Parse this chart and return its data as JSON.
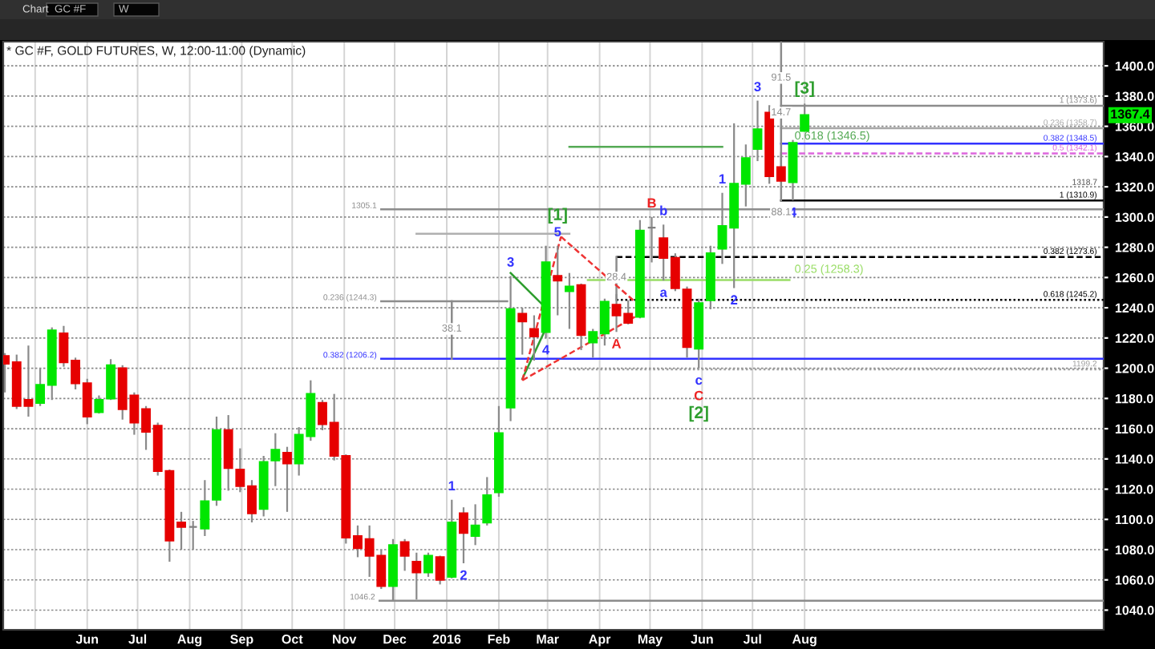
{
  "chart_data": {
    "type": "candlestick",
    "title": "* GC #F, GOLD FUTURES, W, 12:00-11:00 (Dynamic)",
    "x": [
      "2015-04-13",
      "2015-04-20",
      "2015-04-27",
      "2015-05-04",
      "2015-05-11",
      "2015-05-18",
      "2015-05-25",
      "2015-06-01",
      "2015-06-08",
      "2015-06-15",
      "2015-06-22",
      "2015-06-29",
      "2015-07-06",
      "2015-07-13",
      "2015-07-20",
      "2015-07-27",
      "2015-08-03",
      "2015-08-10",
      "2015-08-17",
      "2015-08-24",
      "2015-08-31",
      "2015-09-07",
      "2015-09-14",
      "2015-09-21",
      "2015-09-28",
      "2015-10-05",
      "2015-10-12",
      "2015-10-19",
      "2015-10-26",
      "2015-11-02",
      "2015-11-09",
      "2015-11-16",
      "2015-11-23",
      "2015-11-30",
      "2015-12-07",
      "2015-12-14",
      "2015-12-21",
      "2015-12-28",
      "2016-01-04",
      "2016-01-11",
      "2016-01-18",
      "2016-01-25",
      "2016-02-01",
      "2016-02-08",
      "2016-02-15",
      "2016-02-22",
      "2016-02-29",
      "2016-03-07",
      "2016-03-14",
      "2016-03-21",
      "2016-03-28",
      "2016-04-04",
      "2016-04-11",
      "2016-04-18",
      "2016-04-25",
      "2016-05-02",
      "2016-05-09",
      "2016-05-16",
      "2016-05-23",
      "2016-05-30",
      "2016-06-06",
      "2016-06-13",
      "2016-06-20",
      "2016-06-27",
      "2016-07-04",
      "2016-07-11",
      "2016-07-18",
      "2016-07-25",
      "2016-08-01"
    ],
    "ohlc": [
      [
        1208,
        1210,
        1184,
        1203
      ],
      [
        1204,
        1209,
        1173,
        1175
      ],
      [
        1179,
        1215,
        1168,
        1175
      ],
      [
        1177,
        1200,
        1175,
        1189
      ],
      [
        1189,
        1227,
        1179,
        1225
      ],
      [
        1223,
        1228,
        1201,
        1204
      ],
      [
        1205,
        1207,
        1186,
        1190
      ],
      [
        1190,
        1193,
        1163,
        1168
      ],
      [
        1171,
        1182,
        1170,
        1179
      ],
      [
        1180,
        1206,
        1179,
        1202
      ],
      [
        1200,
        1202,
        1166,
        1173
      ],
      [
        1182,
        1184,
        1156,
        1164
      ],
      [
        1173,
        1175,
        1146,
        1158
      ],
      [
        1162,
        1164,
        1129,
        1132
      ],
      [
        1132,
        1133,
        1072,
        1086
      ],
      [
        1098,
        1105,
        1080,
        1095
      ],
      [
        1095,
        1099,
        1080,
        1095
      ],
      [
        1094,
        1126,
        1089,
        1112
      ],
      [
        1113,
        1168,
        1109,
        1159
      ],
      [
        1159,
        1169,
        1119,
        1134
      ],
      [
        1133,
        1147,
        1118,
        1122
      ],
      [
        1122,
        1126,
        1098,
        1104
      ],
      [
        1107,
        1142,
        1102,
        1138
      ],
      [
        1139,
        1157,
        1122,
        1146
      ],
      [
        1144,
        1148,
        1105,
        1137
      ],
      [
        1137,
        1161,
        1129,
        1156
      ],
      [
        1155,
        1192,
        1152,
        1183
      ],
      [
        1177,
        1179,
        1159,
        1163
      ],
      [
        1164,
        1183,
        1139,
        1142
      ],
      [
        1142,
        1143,
        1084,
        1088
      ],
      [
        1089,
        1096,
        1075,
        1081
      ],
      [
        1087,
        1096,
        1062,
        1076
      ],
      [
        1076,
        1080,
        1054,
        1056
      ],
      [
        1056,
        1087,
        1046,
        1083
      ],
      [
        1085,
        1087,
        1066,
        1076
      ],
      [
        1072,
        1078,
        1047,
        1065
      ],
      [
        1065,
        1078,
        1062,
        1076
      ],
      [
        1075,
        1076,
        1057,
        1060
      ],
      [
        1062,
        1113,
        1061,
        1098
      ],
      [
        1104,
        1108,
        1071,
        1091
      ],
      [
        1089,
        1110,
        1083,
        1096
      ],
      [
        1098,
        1128,
        1096,
        1116
      ],
      [
        1118,
        1175,
        1115,
        1157
      ],
      [
        1174,
        1261,
        1165,
        1239
      ],
      [
        1236,
        1240,
        1209,
        1231
      ],
      [
        1226,
        1235,
        1205,
        1221
      ],
      [
        1224,
        1281,
        1220,
        1270
      ],
      [
        1261,
        1281,
        1235,
        1258
      ],
      [
        1251,
        1263,
        1226,
        1254
      ],
      [
        1255,
        1256,
        1212,
        1222
      ],
      [
        1217,
        1226,
        1207,
        1224
      ],
      [
        1223,
        1246,
        1215,
        1244
      ],
      [
        1242,
        1249,
        1224,
        1235
      ],
      [
        1236,
        1245,
        1229,
        1230
      ],
      [
        1234,
        1298,
        1233,
        1291
      ],
      [
        1293,
        1300,
        1270,
        1293
      ],
      [
        1286,
        1295,
        1258,
        1273
      ],
      [
        1273,
        1276,
        1251,
        1253
      ],
      [
        1252,
        1254,
        1207,
        1214
      ],
      [
        1213,
        1246,
        1200,
        1243
      ],
      [
        1245,
        1281,
        1239,
        1276
      ],
      [
        1279,
        1316,
        1269,
        1294
      ],
      [
        1293,
        1362,
        1253,
        1322
      ],
      [
        1322,
        1348,
        1307,
        1339
      ],
      [
        1345,
        1377,
        1337,
        1358
      ],
      [
        1369,
        1374,
        1322,
        1327
      ],
      [
        1333,
        1343,
        1323,
        1324
      ],
      [
        1323,
        1351,
        1311,
        1349
      ],
      [
        1357,
        1375,
        1357,
        1367.4
      ]
    ],
    "colors": [
      "#e60000",
      "#e60000",
      "#e60000",
      "#00e600",
      "#00e600",
      "#e60000",
      "#e60000",
      "#e60000",
      "#00e600",
      "#00e600",
      "#e60000",
      "#e60000",
      "#e60000",
      "#e60000",
      "#e60000",
      "#e60000",
      "#808080",
      "#00e600",
      "#00e600",
      "#e60000",
      "#e60000",
      "#e60000",
      "#00e600",
      "#00e600",
      "#e60000",
      "#00e600",
      "#00e600",
      "#e60000",
      "#e60000",
      "#e60000",
      "#e60000",
      "#e60000",
      "#e60000",
      "#00e600",
      "#e60000",
      "#e60000",
      "#00e600",
      "#e60000",
      "#00e600",
      "#e60000",
      "#00e600",
      "#00e600",
      "#00e600",
      "#00e600",
      "#e60000",
      "#e60000",
      "#00e600",
      "#e60000",
      "#00e600",
      "#e60000",
      "#00e600",
      "#00e600",
      "#e60000",
      "#e60000",
      "#00e600",
      "#808080",
      "#e60000",
      "#e60000",
      "#e60000",
      "#00e600",
      "#00e600",
      "#00e600",
      "#00e600",
      "#00e600",
      "#00e600",
      "#e60000",
      "#e60000",
      "#00e600",
      "#00e600"
    ],
    "xlim": [
      "2015-04-12",
      "2017-01-26"
    ],
    "xticks": [
      {
        "value": "2015-05-01",
        "label": null
      },
      {
        "value": "2015-06-01",
        "label": "Jun"
      },
      {
        "value": "2015-07-01",
        "label": "Jul"
      },
      {
        "value": "2015-08-01",
        "label": "Aug"
      },
      {
        "value": "2015-09-01",
        "label": "Sep"
      },
      {
        "value": "2015-10-01",
        "label": "Oct"
      },
      {
        "value": "2015-11-01",
        "label": "Nov"
      },
      {
        "value": "2015-12-01",
        "label": "Dec"
      },
      {
        "value": "2016-01-01",
        "label": "2016"
      },
      {
        "value": "2016-02-01",
        "label": "Feb"
      },
      {
        "value": "2016-03-01",
        "label": "Mar"
      },
      {
        "value": "2016-04-01",
        "label": "Apr"
      },
      {
        "value": "2016-05-01",
        "label": "May"
      },
      {
        "value": "2016-06-01",
        "label": "Jun"
      },
      {
        "value": "2016-07-01",
        "label": "Jul"
      },
      {
        "value": "2016-08-01",
        "label": "Aug"
      }
    ],
    "ylim": [
      1027,
      1416
    ],
    "yticks": [
      {
        "value": 1040,
        "label": "1040.0"
      },
      {
        "value": 1060,
        "label": "1060.0"
      },
      {
        "value": 1080,
        "label": "1080.0"
      },
      {
        "value": 1100,
        "label": "1100.0"
      },
      {
        "value": 1120,
        "label": "1120.0"
      },
      {
        "value": 1140,
        "label": "1140.0"
      },
      {
        "value": 1160,
        "label": "1160.0"
      },
      {
        "value": 1180,
        "label": "1180.0"
      },
      {
        "value": 1200,
        "label": "1200.0"
      },
      {
        "value": 1220,
        "label": "1220.0"
      },
      {
        "value": 1240,
        "label": "1240.0"
      },
      {
        "value": 1260,
        "label": "1260.0"
      },
      {
        "value": 1280,
        "label": "1280.0"
      },
      {
        "value": 1300,
        "label": "1300.0"
      },
      {
        "value": 1320,
        "label": "1320.0"
      },
      {
        "value": 1340,
        "label": "1340.0"
      },
      {
        "value": 1360,
        "label": "1360.0"
      },
      {
        "value": 1380,
        "label": "1380.0"
      },
      {
        "value": 1400,
        "label": "1400.0"
      }
    ],
    "grid": true,
    "series": [
      {
        "type": "line",
        "color": "#8c8c8c",
        "x": [
          "2015-11-23",
          "2017-01-26"
        ],
        "values": [
          1305.1,
          1305.1
        ]
      },
      {
        "type": "line",
        "color": "#8c8c8c",
        "x": [
          "2015-11-23",
          "2016-02-06"
        ],
        "values": [
          1244.3,
          1244.3
        ]
      },
      {
        "type": "line",
        "color": "#3333ff",
        "x": [
          "2015-11-23",
          "2017-01-26"
        ],
        "values": [
          1206.2,
          1206.2
        ]
      },
      {
        "type": "line",
        "color": "#a0a0a0",
        "line_style": "dotted",
        "x": [
          "2016-03-14",
          "2017-01-26"
        ],
        "values": [
          1199.2,
          1199.2
        ]
      },
      {
        "type": "line",
        "color": "#8c8c8c",
        "x": [
          "2015-11-22",
          "2017-01-26"
        ],
        "values": [
          1046.2,
          1046.2
        ]
      },
      {
        "type": "line",
        "color": "#000000",
        "line_style": "dashed",
        "x": [
          "2016-04-11",
          "2017-01-26"
        ],
        "values": [
          1273.6,
          1273.6
        ]
      },
      {
        "type": "line",
        "color": "#000000",
        "line_style": "dotted",
        "x": [
          "2016-04-11",
          "2017-01-26"
        ],
        "values": [
          1245.2,
          1245.2
        ]
      },
      {
        "type": "line",
        "color": "#99dd66",
        "x": [
          "2016-03-25",
          "2016-07-23"
        ],
        "values": [
          1258.3,
          1258.3
        ]
      },
      {
        "type": "line",
        "color": "#55aa55",
        "x": [
          "2016-03-14",
          "2016-06-13"
        ],
        "values": [
          1346.5,
          1346.5
        ]
      },
      {
        "type": "line",
        "color": "#8c8c8c",
        "x": [
          "2016-07-18",
          "2017-01-26"
        ],
        "values": [
          1373.6,
          1373.6
        ]
      },
      {
        "type": "line",
        "color": "#a8a8a8",
        "x": [
          "2016-07-18",
          "2017-01-26"
        ],
        "values": [
          1358.7,
          1358.7
        ]
      },
      {
        "type": "line",
        "color": "#3333ff",
        "x": [
          "2016-07-18",
          "2017-01-26"
        ],
        "values": [
          1348.5,
          1348.5
        ]
      },
      {
        "type": "line",
        "color": "#dd66dd",
        "line_style": "dashed",
        "x": [
          "2016-07-18",
          "2017-01-26"
        ],
        "values": [
          1342.1,
          1342.1
        ]
      },
      {
        "type": "line",
        "color": "#000000",
        "x": [
          "2016-07-18",
          "2017-01-26"
        ],
        "values": [
          1310.9,
          1310.9
        ]
      },
      {
        "type": "line",
        "color": "#b0b0b0",
        "x": [
          "2015-12-14",
          "2016-03-14"
        ],
        "values": [
          1289,
          1289
        ]
      },
      {
        "type": "line",
        "color": "#8c8c8c",
        "x": [
          "2016-07-18",
          "2016-07-18"
        ],
        "values": [
          1310.9,
          1416
        ]
      },
      {
        "type": "line",
        "color": "#8c8c8c",
        "x": [
          "2016-01-04",
          "2016-01-04"
        ],
        "values": [
          1206.2,
          1244.3
        ]
      },
      {
        "type": "line",
        "color": "#8c8c8c",
        "x": [
          "2016-04-11",
          "2016-04-11"
        ],
        "values": [
          1245.2,
          1273.6
        ]
      },
      {
        "type": "line",
        "color": "#2e9e2e",
        "x": [
          "2016-02-08",
          "2016-02-27"
        ],
        "values": [
          1263,
          1242
        ]
      },
      {
        "type": "line",
        "color": "#2e9e2e",
        "x": [
          "2016-02-15",
          "2016-02-28"
        ],
        "values": [
          1193,
          1224
        ]
      },
      {
        "type": "line",
        "color": "#ee3333",
        "line_style": "dashed",
        "x": [
          "2016-02-15",
          "2016-03-09"
        ],
        "values": [
          1192,
          1287
        ]
      },
      {
        "type": "line",
        "color": "#ee3333",
        "line_style": "dashed",
        "x": [
          "2016-03-09",
          "2016-04-22"
        ],
        "values": [
          1287,
          1244
        ]
      },
      {
        "type": "line",
        "color": "#ee3333",
        "line_style": "dashed",
        "x": [
          "2016-02-15",
          "2016-04-22"
        ],
        "values": [
          1192,
          1234
        ]
      }
    ],
    "annotations": [
      "Chart",
      "GC #F",
      "W",
      "1318.7",
      {
        "text": "1367.4",
        "y": 1367.4
      },
      {
        "text": "1",
        "x": "2016-01-04",
        "y": 1113
      },
      {
        "text": "2",
        "x": "2016-01-11",
        "y": 1071
      },
      {
        "text": "3",
        "x": "2016-02-08",
        "y": 1261
      },
      {
        "text": "4",
        "x": "2016-02-29",
        "y": 1220
      },
      {
        "text": "5",
        "x": "2016-03-07",
        "y": 1281
      },
      {
        "text": "[1]",
        "x": "2016-03-07",
        "y": 1281
      },
      {
        "text": "A",
        "x": "2016-04-11",
        "y": 1224
      },
      {
        "text": "B",
        "x": "2016-05-02",
        "y": 1300
      },
      {
        "text": "a",
        "x": "2016-05-09",
        "y": 1258
      },
      {
        "text": "b",
        "x": "2016-05-09",
        "y": 1295
      },
      {
        "text": "c",
        "x": "2016-05-30",
        "y": 1200
      },
      {
        "text": "C",
        "x": "2016-05-30",
        "y": 1200
      },
      {
        "text": "[2]",
        "x": "2016-05-30",
        "y": 1200
      },
      {
        "text": "1",
        "x": "2016-06-13",
        "y": 1316
      },
      {
        "text": "2",
        "x": "2016-06-20",
        "y": 1253
      },
      {
        "text": "3",
        "x": "2016-07-04",
        "y": 1377
      },
      {
        "text": "4",
        "x": "2016-07-25",
        "y": 1311
      },
      {
        "text": "[3]",
        "x": "2016-08-01",
        "y": 1375
      },
      {
        "text": "91.5",
        "x": "2016-07-18",
        "y": 1392
      },
      {
        "text": "14.7",
        "x": "2016-07-18",
        "y": 1369
      },
      {
        "text": "88.1",
        "x": "2016-07-18",
        "y": 1303
      },
      {
        "text": "38.1",
        "x": "2016-01-04",
        "y": 1226
      },
      {
        "text": "28.4",
        "x": "2016-04-11",
        "y": 1260
      },
      {
        "text": "1305.1",
        "x": "2015-11-23",
        "y": 1305.1
      },
      {
        "text": "0.236 (1244.3)",
        "x": "2015-11-23",
        "y": 1244.3
      },
      {
        "text": "0.382 (1206.2)",
        "x": "2015-11-23",
        "y": 1206.2
      },
      {
        "text": "1046.2",
        "x": "2015-11-22",
        "y": 1046.2
      },
      {
        "text": "0.25 (1258.3)",
        "x": "2016-07-26",
        "y": 1258.3
      },
      {
        "text": "0.618 (1346.5)",
        "x": "2016-07-26",
        "y": 1346.5
      },
      {
        "text": "1 (1373.6)",
        "x": "2017-01-26",
        "y": 1373.6
      },
      {
        "text": "0.236 (1358.7)",
        "x": "2017-01-26",
        "y": 1358.7
      },
      {
        "text": "0.382 (1348.5)",
        "x": "2017-01-26",
        "y": 1348.5
      },
      {
        "text": "0.5 (1342.1)",
        "x": "2017-01-26",
        "y": 1342.1
      },
      {
        "text": "1 (1310.9)",
        "x": "2017-01-26",
        "y": 1310.9
      },
      {
        "text": "0.382 (1273.6)",
        "x": "2017-01-26",
        "y": 1273.6
      },
      {
        "text": "0.618 (1245.2)",
        "x": "2017-01-26",
        "y": 1245.2
      },
      {
        "text": "1199.2",
        "x": "2017-01-26",
        "y": 1199.2
      }
    ]
  }
}
